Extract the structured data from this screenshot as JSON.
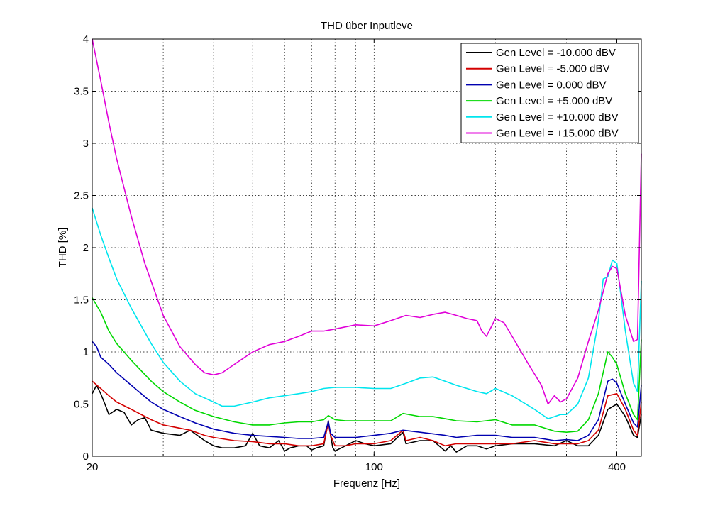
{
  "chart_data": {
    "type": "line",
    "title": "THD über Inputleve",
    "xlabel": "Frequenz [Hz]",
    "ylabel": "THD [%]",
    "xscale": "log",
    "xlim": [
      20,
      460
    ],
    "ylim": [
      0,
      4
    ],
    "grid": true,
    "legend_position": "top-right",
    "x_tick_labels": [
      {
        "value": 20,
        "label": "20"
      },
      {
        "value": 100,
        "label": "100"
      },
      {
        "value": 400,
        "label": "400"
      }
    ],
    "y_tick_labels": [
      {
        "value": 0,
        "label": "0"
      },
      {
        "value": 0.5,
        "label": "0.5"
      },
      {
        "value": 1,
        "label": "1"
      },
      {
        "value": 1.5,
        "label": "1.5"
      },
      {
        "value": 2,
        "label": "2"
      },
      {
        "value": 2.5,
        "label": "2.5"
      },
      {
        "value": 3,
        "label": "3"
      },
      {
        "value": 3.5,
        "label": "3.5"
      },
      {
        "value": 4,
        "label": "4"
      }
    ],
    "series": [
      {
        "name": "Gen Level = -10.000 dBV",
        "color": "#000000",
        "points": [
          [
            20,
            0.6
          ],
          [
            20.5,
            0.68
          ],
          [
            21,
            0.6
          ],
          [
            21.5,
            0.5
          ],
          [
            22,
            0.4
          ],
          [
            23,
            0.45
          ],
          [
            24,
            0.42
          ],
          [
            25,
            0.3
          ],
          [
            26,
            0.35
          ],
          [
            27,
            0.37
          ],
          [
            28,
            0.25
          ],
          [
            30,
            0.22
          ],
          [
            33,
            0.2
          ],
          [
            35,
            0.25
          ],
          [
            38,
            0.15
          ],
          [
            40,
            0.1
          ],
          [
            42,
            0.08
          ],
          [
            45,
            0.08
          ],
          [
            48,
            0.1
          ],
          [
            50,
            0.22
          ],
          [
            52,
            0.1
          ],
          [
            55,
            0.08
          ],
          [
            58,
            0.15
          ],
          [
            60,
            0.05
          ],
          [
            62,
            0.08
          ],
          [
            65,
            0.1
          ],
          [
            68,
            0.1
          ],
          [
            70,
            0.06
          ],
          [
            72,
            0.08
          ],
          [
            75,
            0.1
          ],
          [
            77,
            0.34
          ],
          [
            78,
            0.2
          ],
          [
            79,
            0.08
          ],
          [
            80,
            0.05
          ],
          [
            83,
            0.08
          ],
          [
            85,
            0.1
          ],
          [
            90,
            0.15
          ],
          [
            95,
            0.12
          ],
          [
            100,
            0.1
          ],
          [
            110,
            0.12
          ],
          [
            118,
            0.23
          ],
          [
            120,
            0.12
          ],
          [
            130,
            0.15
          ],
          [
            140,
            0.15
          ],
          [
            150,
            0.05
          ],
          [
            155,
            0.1
          ],
          [
            160,
            0.04
          ],
          [
            170,
            0.1
          ],
          [
            180,
            0.1
          ],
          [
            190,
            0.07
          ],
          [
            200,
            0.1
          ],
          [
            220,
            0.12
          ],
          [
            250,
            0.12
          ],
          [
            280,
            0.1
          ],
          [
            300,
            0.15
          ],
          [
            320,
            0.1
          ],
          [
            340,
            0.1
          ],
          [
            360,
            0.2
          ],
          [
            380,
            0.45
          ],
          [
            400,
            0.5
          ],
          [
            420,
            0.38
          ],
          [
            440,
            0.2
          ],
          [
            450,
            0.18
          ],
          [
            460,
            0.4
          ]
        ]
      },
      {
        "name": "Gen Level = -5.000 dBV",
        "color": "#d40000",
        "points": [
          [
            20,
            0.72
          ],
          [
            21,
            0.65
          ],
          [
            22,
            0.58
          ],
          [
            23,
            0.52
          ],
          [
            25,
            0.45
          ],
          [
            28,
            0.35
          ],
          [
            30,
            0.3
          ],
          [
            35,
            0.25
          ],
          [
            38,
            0.2
          ],
          [
            40,
            0.18
          ],
          [
            45,
            0.15
          ],
          [
            50,
            0.14
          ],
          [
            55,
            0.12
          ],
          [
            60,
            0.12
          ],
          [
            65,
            0.1
          ],
          [
            70,
            0.1
          ],
          [
            75,
            0.12
          ],
          [
            77,
            0.32
          ],
          [
            78,
            0.2
          ],
          [
            80,
            0.1
          ],
          [
            85,
            0.1
          ],
          [
            90,
            0.12
          ],
          [
            100,
            0.12
          ],
          [
            110,
            0.15
          ],
          [
            118,
            0.25
          ],
          [
            120,
            0.15
          ],
          [
            130,
            0.18
          ],
          [
            140,
            0.15
          ],
          [
            150,
            0.1
          ],
          [
            160,
            0.12
          ],
          [
            180,
            0.12
          ],
          [
            200,
            0.12
          ],
          [
            220,
            0.12
          ],
          [
            250,
            0.15
          ],
          [
            280,
            0.12
          ],
          [
            300,
            0.12
          ],
          [
            320,
            0.12
          ],
          [
            340,
            0.15
          ],
          [
            360,
            0.25
          ],
          [
            380,
            0.58
          ],
          [
            400,
            0.6
          ],
          [
            420,
            0.45
          ],
          [
            440,
            0.25
          ],
          [
            450,
            0.2
          ],
          [
            460,
            0.52
          ]
        ]
      },
      {
        "name": "Gen Level = 0.000 dBV",
        "color": "#0000b0",
        "points": [
          [
            20,
            1.1
          ],
          [
            20.5,
            1.05
          ],
          [
            21,
            0.95
          ],
          [
            22,
            0.88
          ],
          [
            23,
            0.8
          ],
          [
            25,
            0.68
          ],
          [
            28,
            0.52
          ],
          [
            30,
            0.45
          ],
          [
            33,
            0.38
          ],
          [
            36,
            0.32
          ],
          [
            40,
            0.26
          ],
          [
            45,
            0.22
          ],
          [
            50,
            0.2
          ],
          [
            55,
            0.19
          ],
          [
            60,
            0.18
          ],
          [
            65,
            0.17
          ],
          [
            70,
            0.17
          ],
          [
            75,
            0.18
          ],
          [
            77,
            0.33
          ],
          [
            78,
            0.22
          ],
          [
            80,
            0.18
          ],
          [
            85,
            0.18
          ],
          [
            90,
            0.18
          ],
          [
            100,
            0.2
          ],
          [
            110,
            0.22
          ],
          [
            118,
            0.25
          ],
          [
            130,
            0.23
          ],
          [
            150,
            0.2
          ],
          [
            160,
            0.18
          ],
          [
            180,
            0.2
          ],
          [
            200,
            0.2
          ],
          [
            220,
            0.18
          ],
          [
            250,
            0.18
          ],
          [
            280,
            0.15
          ],
          [
            300,
            0.16
          ],
          [
            320,
            0.15
          ],
          [
            340,
            0.2
          ],
          [
            360,
            0.35
          ],
          [
            380,
            0.72
          ],
          [
            390,
            0.74
          ],
          [
            400,
            0.7
          ],
          [
            420,
            0.5
          ],
          [
            440,
            0.32
          ],
          [
            450,
            0.28
          ],
          [
            460,
            0.68
          ]
        ]
      },
      {
        "name": "Gen Level = +5.000 dBV",
        "color": "#00d800",
        "points": [
          [
            20,
            1.52
          ],
          [
            21,
            1.38
          ],
          [
            22,
            1.2
          ],
          [
            23,
            1.08
          ],
          [
            25,
            0.92
          ],
          [
            28,
            0.72
          ],
          [
            30,
            0.62
          ],
          [
            33,
            0.52
          ],
          [
            36,
            0.44
          ],
          [
            40,
            0.38
          ],
          [
            45,
            0.33
          ],
          [
            50,
            0.3
          ],
          [
            55,
            0.3
          ],
          [
            60,
            0.32
          ],
          [
            65,
            0.33
          ],
          [
            70,
            0.33
          ],
          [
            75,
            0.35
          ],
          [
            77,
            0.39
          ],
          [
            80,
            0.35
          ],
          [
            85,
            0.34
          ],
          [
            90,
            0.34
          ],
          [
            100,
            0.34
          ],
          [
            110,
            0.34
          ],
          [
            118,
            0.41
          ],
          [
            130,
            0.38
          ],
          [
            140,
            0.38
          ],
          [
            150,
            0.36
          ],
          [
            160,
            0.34
          ],
          [
            180,
            0.33
          ],
          [
            200,
            0.35
          ],
          [
            220,
            0.3
          ],
          [
            250,
            0.3
          ],
          [
            280,
            0.24
          ],
          [
            300,
            0.23
          ],
          [
            320,
            0.24
          ],
          [
            340,
            0.35
          ],
          [
            360,
            0.6
          ],
          [
            380,
            1.0
          ],
          [
            390,
            0.95
          ],
          [
            400,
            0.88
          ],
          [
            420,
            0.6
          ],
          [
            440,
            0.4
          ],
          [
            450,
            0.35
          ],
          [
            460,
            1.12
          ]
        ]
      },
      {
        "name": "Gen Level = +10.000 dBV",
        "color": "#00e5ee",
        "points": [
          [
            20,
            2.38
          ],
          [
            21,
            2.12
          ],
          [
            22,
            1.9
          ],
          [
            23,
            1.7
          ],
          [
            25,
            1.42
          ],
          [
            28,
            1.08
          ],
          [
            30,
            0.9
          ],
          [
            33,
            0.72
          ],
          [
            36,
            0.6
          ],
          [
            40,
            0.52
          ],
          [
            42,
            0.48
          ],
          [
            45,
            0.48
          ],
          [
            50,
            0.52
          ],
          [
            55,
            0.56
          ],
          [
            60,
            0.58
          ],
          [
            65,
            0.6
          ],
          [
            70,
            0.62
          ],
          [
            75,
            0.65
          ],
          [
            80,
            0.66
          ],
          [
            90,
            0.66
          ],
          [
            100,
            0.65
          ],
          [
            110,
            0.65
          ],
          [
            120,
            0.7
          ],
          [
            130,
            0.75
          ],
          [
            140,
            0.76
          ],
          [
            150,
            0.72
          ],
          [
            160,
            0.68
          ],
          [
            170,
            0.65
          ],
          [
            180,
            0.62
          ],
          [
            190,
            0.6
          ],
          [
            200,
            0.65
          ],
          [
            220,
            0.58
          ],
          [
            250,
            0.45
          ],
          [
            270,
            0.36
          ],
          [
            290,
            0.4
          ],
          [
            300,
            0.4
          ],
          [
            320,
            0.5
          ],
          [
            340,
            0.75
          ],
          [
            360,
            1.3
          ],
          [
            370,
            1.7
          ],
          [
            380,
            1.72
          ],
          [
            390,
            1.88
          ],
          [
            400,
            1.85
          ],
          [
            420,
            1.2
          ],
          [
            440,
            0.7
          ],
          [
            450,
            0.62
          ],
          [
            460,
            1.68
          ]
        ]
      },
      {
        "name": "Gen Level = +15.000 dBV",
        "color": "#e000d8",
        "points": [
          [
            20,
            4.0
          ],
          [
            21,
            3.6
          ],
          [
            22,
            3.2
          ],
          [
            23,
            2.85
          ],
          [
            25,
            2.3
          ],
          [
            27,
            1.85
          ],
          [
            30,
            1.35
          ],
          [
            33,
            1.05
          ],
          [
            36,
            0.88
          ],
          [
            38,
            0.8
          ],
          [
            40,
            0.78
          ],
          [
            42,
            0.8
          ],
          [
            45,
            0.88
          ],
          [
            50,
            1.0
          ],
          [
            55,
            1.07
          ],
          [
            60,
            1.1
          ],
          [
            65,
            1.15
          ],
          [
            70,
            1.2
          ],
          [
            75,
            1.2
          ],
          [
            80,
            1.22
          ],
          [
            90,
            1.26
          ],
          [
            100,
            1.25
          ],
          [
            110,
            1.3
          ],
          [
            120,
            1.35
          ],
          [
            130,
            1.33
          ],
          [
            140,
            1.36
          ],
          [
            150,
            1.38
          ],
          [
            160,
            1.35
          ],
          [
            170,
            1.32
          ],
          [
            180,
            1.3
          ],
          [
            185,
            1.2
          ],
          [
            190,
            1.15
          ],
          [
            200,
            1.32
          ],
          [
            210,
            1.28
          ],
          [
            220,
            1.15
          ],
          [
            240,
            0.9
          ],
          [
            260,
            0.68
          ],
          [
            270,
            0.5
          ],
          [
            280,
            0.58
          ],
          [
            290,
            0.52
          ],
          [
            300,
            0.55
          ],
          [
            320,
            0.75
          ],
          [
            340,
            1.1
          ],
          [
            360,
            1.4
          ],
          [
            380,
            1.75
          ],
          [
            390,
            1.82
          ],
          [
            400,
            1.8
          ],
          [
            420,
            1.35
          ],
          [
            440,
            1.1
          ],
          [
            450,
            1.12
          ],
          [
            460,
            2.9
          ]
        ]
      }
    ]
  }
}
